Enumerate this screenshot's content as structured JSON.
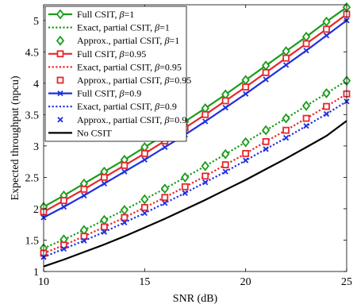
{
  "chart_data": {
    "type": "line",
    "title": "",
    "xlabel": "SNR (dB)",
    "ylabel": "Expected throughput (npcu)",
    "xlim": [
      10,
      25
    ],
    "ylim": [
      1,
      5.25
    ],
    "xticks": [
      10,
      15,
      20,
      25
    ],
    "yticks": [
      1,
      1.5,
      2,
      2.5,
      3,
      3.5,
      4,
      4.5,
      5
    ],
    "grid": false,
    "legend_position": "top-left",
    "x": [
      10,
      11,
      12,
      13,
      14,
      15,
      16,
      17,
      18,
      19,
      20,
      21,
      22,
      23,
      24,
      25
    ],
    "series": [
      {
        "name": "Full CSIT, β=1",
        "legend_label": "Full CSIT, ",
        "beta": "β=1",
        "color": "#1a9c1a",
        "dash": "solid",
        "marker": "diamond",
        "marker_fill": "none",
        "values": [
          2.03,
          2.21,
          2.4,
          2.59,
          2.78,
          2.98,
          3.18,
          3.39,
          3.6,
          3.82,
          4.05,
          4.28,
          4.51,
          4.74,
          4.98,
          5.21
        ]
      },
      {
        "name": "Exact, partial CSIT, β=1",
        "legend_label": "Exact, partial CSIT, ",
        "beta": "β=1",
        "color": "#1a9c1a",
        "dash": "dotted",
        "marker": "none",
        "marker_fill": "none",
        "values": [
          1.37,
          1.51,
          1.66,
          1.82,
          1.98,
          2.15,
          2.32,
          2.5,
          2.68,
          2.87,
          3.06,
          3.25,
          3.44,
          3.64,
          3.84,
          4.04
        ]
      },
      {
        "name": "Approx., partial CSIT, β=1",
        "legend_label": "Approx., partial CSIT, ",
        "beta": "β=1",
        "color": "#1a9c1a",
        "dash": "none",
        "marker": "diamond",
        "marker_fill": "none",
        "values": [
          1.37,
          1.51,
          1.66,
          1.82,
          1.98,
          2.15,
          2.32,
          2.5,
          2.68,
          2.87,
          3.06,
          3.25,
          3.44,
          3.64,
          3.84,
          4.04
        ]
      },
      {
        "name": "Full CSIT, β=0.95",
        "legend_label": "Full CSIT, ",
        "beta": "β=0.95",
        "color": "#e8262a",
        "dash": "solid",
        "marker": "square",
        "marker_fill": "none",
        "values": [
          1.95,
          2.13,
          2.31,
          2.5,
          2.69,
          2.88,
          3.08,
          3.29,
          3.5,
          3.72,
          3.94,
          4.17,
          4.4,
          4.63,
          4.86,
          5.1
        ]
      },
      {
        "name": "Exact, partial CSIT, β=0.95",
        "legend_label": "Exact, partial CSIT, ",
        "beta": "β=0.95",
        "color": "#e8262a",
        "dash": "dotted",
        "marker": "none",
        "marker_fill": "none",
        "values": [
          1.29,
          1.42,
          1.56,
          1.71,
          1.86,
          2.02,
          2.18,
          2.35,
          2.52,
          2.7,
          2.88,
          3.07,
          3.25,
          3.44,
          3.63,
          3.83
        ]
      },
      {
        "name": "Approx., partial CSIT, β=0.95",
        "legend_label": "Approx., partial CSIT, ",
        "beta": "β=0.95",
        "color": "#e8262a",
        "dash": "none",
        "marker": "square",
        "marker_fill": "none",
        "values": [
          1.29,
          1.42,
          1.56,
          1.71,
          1.86,
          2.02,
          2.18,
          2.35,
          2.52,
          2.7,
          2.88,
          3.07,
          3.25,
          3.44,
          3.63,
          3.83
        ]
      },
      {
        "name": "Full CSIT, β=0.9",
        "legend_label": "Full CSIT, ",
        "beta": "β=0.9",
        "color": "#1f2fe0",
        "dash": "solid",
        "marker": "x",
        "marker_fill": "none",
        "values": [
          1.86,
          2.03,
          2.21,
          2.4,
          2.59,
          2.78,
          2.98,
          3.18,
          3.39,
          3.61,
          3.83,
          4.06,
          4.29,
          4.52,
          4.76,
          5.0
        ]
      },
      {
        "name": "Exact, partial CSIT, β=0.9",
        "legend_label": "Exact, partial CSIT, ",
        "beta": "β=0.9",
        "color": "#1f2fe0",
        "dash": "dotted",
        "marker": "none",
        "marker_fill": "none",
        "values": [
          1.23,
          1.36,
          1.49,
          1.63,
          1.78,
          1.93,
          2.09,
          2.25,
          2.42,
          2.59,
          2.77,
          2.95,
          3.13,
          3.32,
          3.51,
          3.71
        ]
      },
      {
        "name": "Approx., partial CSIT, β=0.9",
        "legend_label": "Approx., partial CSIT, ",
        "beta": "β=0.9",
        "color": "#1f2fe0",
        "dash": "none",
        "marker": "x",
        "marker_fill": "none",
        "values": [
          1.23,
          1.36,
          1.49,
          1.63,
          1.78,
          1.93,
          2.09,
          2.25,
          2.42,
          2.59,
          2.77,
          2.95,
          3.13,
          3.32,
          3.51,
          3.71
        ]
      },
      {
        "name": "No CSIT",
        "legend_label": "No CSIT",
        "beta": "",
        "color": "#000000",
        "dash": "solid",
        "marker": "none",
        "marker_fill": "none",
        "values": [
          1.08,
          1.19,
          1.31,
          1.43,
          1.56,
          1.7,
          1.84,
          1.99,
          2.14,
          2.3,
          2.46,
          2.63,
          2.8,
          2.98,
          3.16,
          3.4
        ]
      }
    ]
  }
}
